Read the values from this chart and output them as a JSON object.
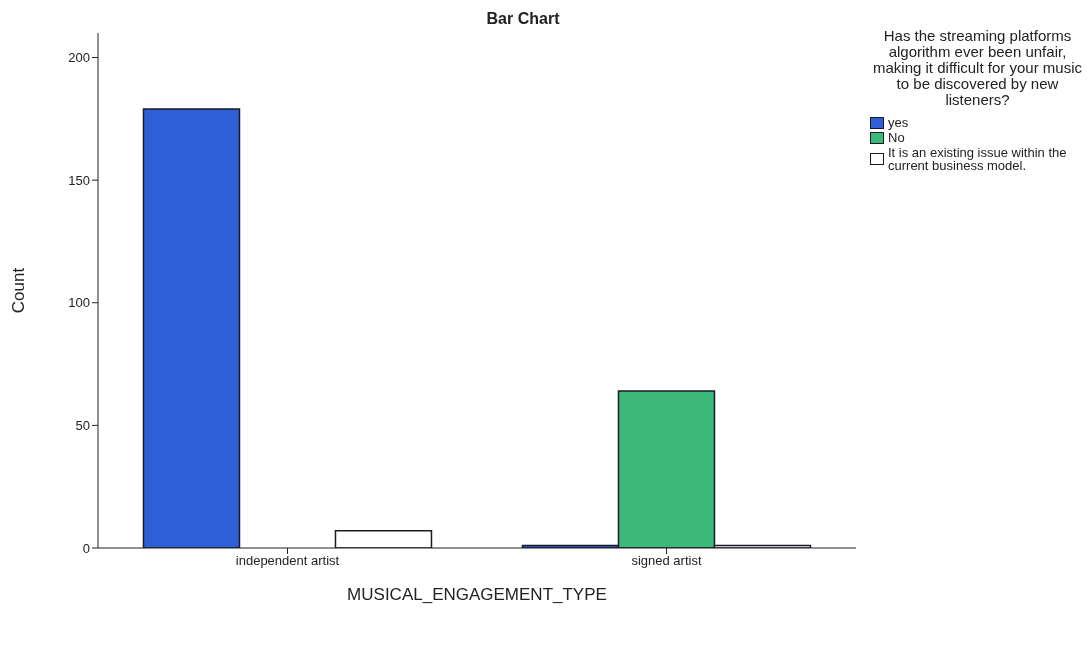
{
  "chart_data": {
    "type": "bar",
    "title": "Bar Chart",
    "xlabel": "MUSICAL_ENGAGEMENT_TYPE",
    "ylabel": "Count",
    "legend_title": "Has the streaming platforms algorithm ever been unfair, making it difficult for your music to be discovered by new listeners?",
    "categories": [
      "independent artist",
      "signed artist"
    ],
    "series": [
      {
        "name": "yes",
        "color": "#2f5fd8",
        "values": [
          179,
          1
        ]
      },
      {
        "name": "No",
        "color": "#3cb878",
        "values": [
          0,
          64
        ]
      },
      {
        "name": "It is an existing issue within the current business model.",
        "color": "#ffffff",
        "values": [
          7,
          1
        ]
      }
    ],
    "ylim": [
      0,
      210
    ],
    "yticks": [
      0,
      50,
      100,
      150,
      200
    ],
    "grid": false,
    "legend": "right"
  }
}
